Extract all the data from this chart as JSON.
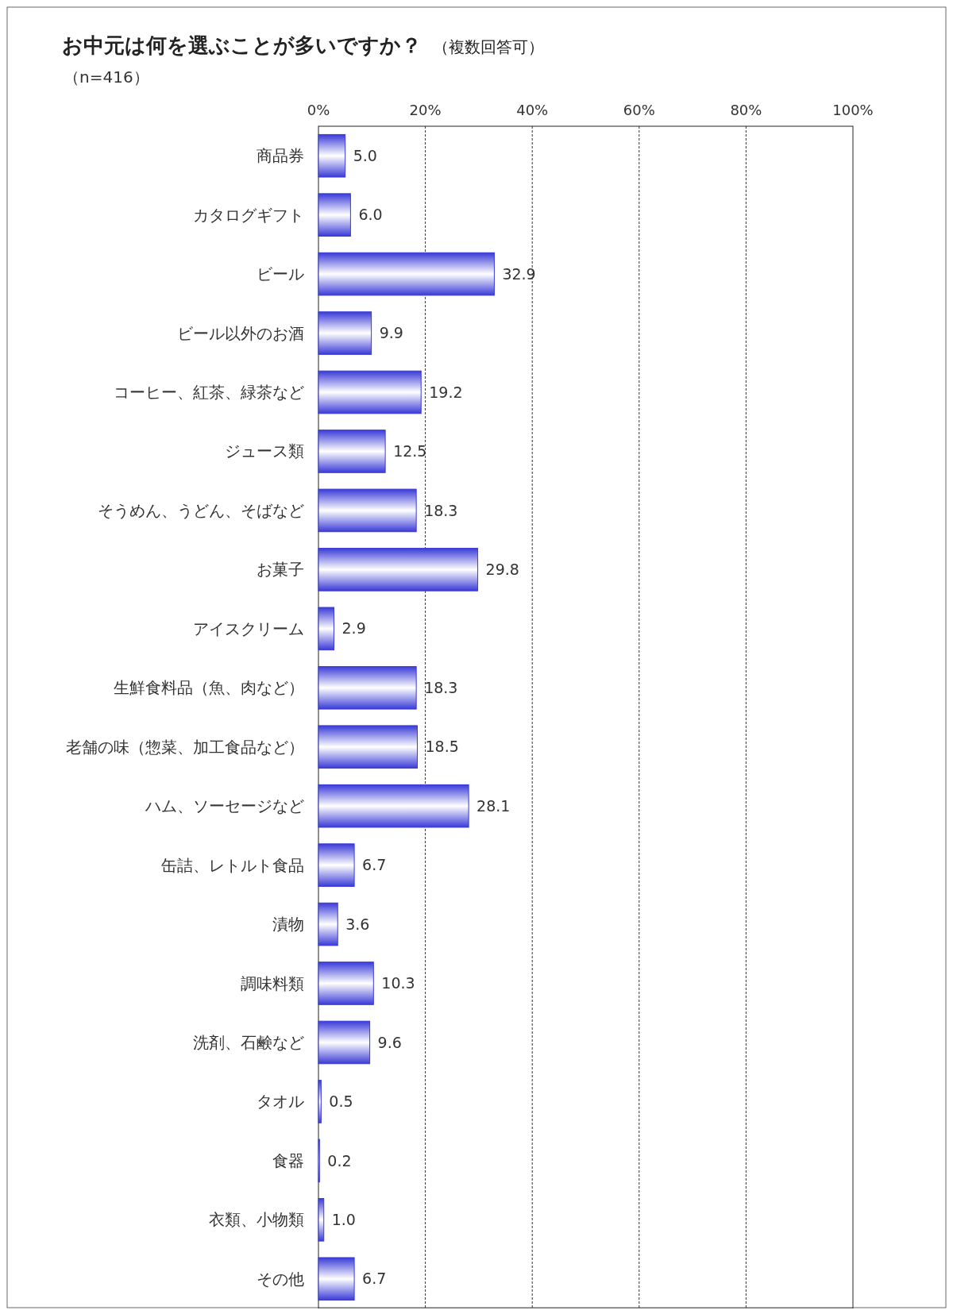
{
  "chart_data": {
    "type": "bar",
    "orientation": "horizontal",
    "title": "お中元は何を選ぶことが多いですか？",
    "subtitle": "（複数回答可）",
    "annotations": [
      "（n=416）"
    ],
    "categories": [
      "商品券",
      "カタログギフト",
      "ビール",
      "ビール以外のお酒",
      "コーヒー、紅茶、緑茶など",
      "ジュース類",
      "そうめん、うどん、そばなど",
      "お菓子",
      "アイスクリーム",
      "生鮮食料品（魚、肉など）",
      "老舗の味（惣菜、加工食品など）",
      "ハム、ソーセージなど",
      "缶詰、レトルト食品",
      "漬物",
      "調味料類",
      "洗剤、石鹸など",
      "タオル",
      "食器",
      "衣類、小物類",
      "その他"
    ],
    "values": [
      5.0,
      6.0,
      32.9,
      9.9,
      19.2,
      12.5,
      18.3,
      29.8,
      2.9,
      18.3,
      18.5,
      28.1,
      6.7,
      3.6,
      10.3,
      9.6,
      0.5,
      0.2,
      1.0,
      6.7
    ],
    "value_labels": [
      "5.0",
      "6.0",
      "32.9",
      "9.9",
      "19.2",
      "12.5",
      "18.3",
      "29.8",
      "2.9",
      "18.3",
      "18.5",
      "28.1",
      "6.7",
      "3.6",
      "10.3",
      "9.6",
      "0.5",
      "0.2",
      "1.0",
      "6.7"
    ],
    "color": "#3a3ad8",
    "xlim": [
      0,
      100
    ],
    "xticks": [
      {
        "value": 0,
        "label": "0%"
      },
      {
        "value": 20,
        "label": "20%"
      },
      {
        "value": 40,
        "label": "40%"
      },
      {
        "value": 60,
        "label": "60%"
      },
      {
        "value": 80,
        "label": "80%"
      },
      {
        "value": 100,
        "label": "100%"
      }
    ],
    "grid": "x"
  }
}
